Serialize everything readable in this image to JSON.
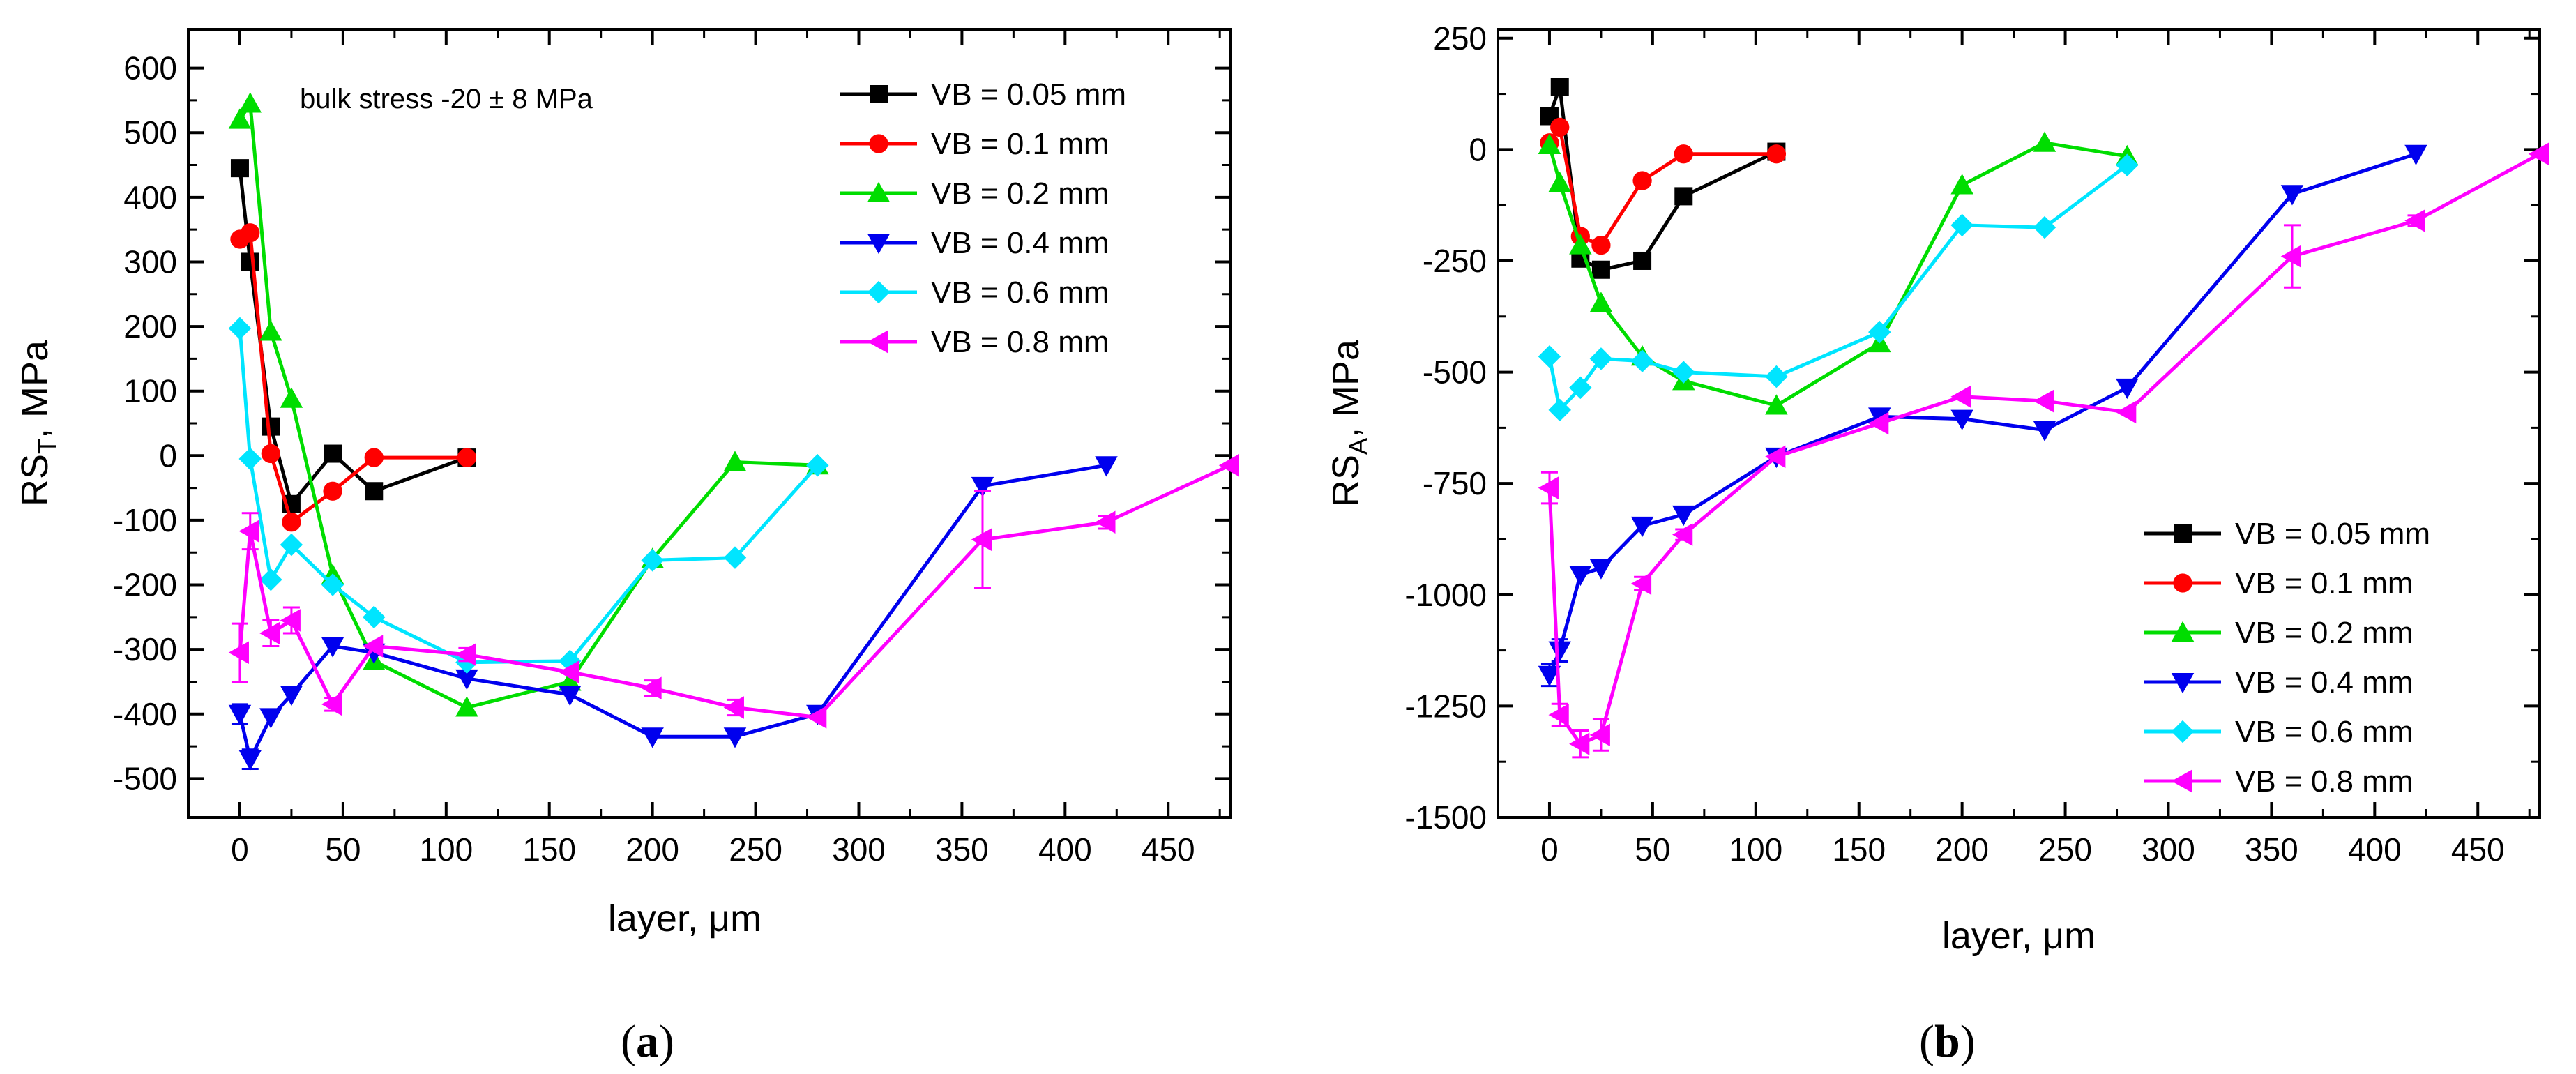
{
  "chart_data": [
    {
      "type": "line",
      "panel_label": "a",
      "xlabel": "layer, μm",
      "ylabel_main": "RS",
      "ylabel_sub": "T",
      "ylabel_tail": ", MPa",
      "annotation": "bulk stress -20 ± 8 MPa",
      "xlim": [
        -25,
        480
      ],
      "ylim": [
        -560,
        660
      ],
      "xticks": [
        0,
        50,
        100,
        150,
        200,
        250,
        300,
        350,
        400,
        450
      ],
      "yticks": [
        -500,
        -400,
        -300,
        -200,
        -100,
        0,
        100,
        200,
        300,
        400,
        500,
        600
      ],
      "legend_position": "top-right",
      "series": [
        {
          "name": "VB = 0.05 mm",
          "color": "#000000",
          "marker": "square",
          "x": [
            0,
            5,
            15,
            25,
            45,
            65,
            110
          ],
          "y": [
            445,
            300,
            45,
            -75,
            3,
            -55,
            -3
          ],
          "err": [
            0,
            0,
            0,
            0,
            0,
            0,
            0
          ]
        },
        {
          "name": "VB = 0.1 mm",
          "color": "#ff0000",
          "marker": "circle",
          "x": [
            0,
            5,
            15,
            25,
            45,
            65,
            110
          ],
          "y": [
            335,
            345,
            3,
            -103,
            -55,
            -3,
            -3
          ],
          "err": [
            0,
            0,
            0,
            0,
            0,
            0,
            0
          ]
        },
        {
          "name": "VB = 0.2 mm",
          "color": "#00dd00",
          "marker": "triangle-up",
          "x": [
            0,
            5,
            15,
            25,
            45,
            65,
            110,
            160,
            200,
            240,
            280
          ],
          "y": [
            520,
            545,
            192,
            88,
            -185,
            -318,
            -390,
            -350,
            -160,
            -10,
            -15
          ],
          "err": [
            0,
            0,
            0,
            0,
            0,
            0,
            0,
            0,
            0,
            0,
            0
          ]
        },
        {
          "name": "VB = 0.4 mm",
          "color": "#0000ee",
          "marker": "triangle-down",
          "x": [
            0,
            5,
            15,
            25,
            45,
            65,
            110,
            160,
            200,
            240,
            280,
            360,
            420
          ],
          "y": [
            -400,
            -470,
            -405,
            -370,
            -295,
            -305,
            -345,
            -370,
            -435,
            -435,
            -400,
            -47,
            -15
          ],
          "err": [
            15,
            15,
            0,
            0,
            0,
            0,
            0,
            0,
            0,
            0,
            0,
            0,
            0
          ]
        },
        {
          "name": "VB = 0.6 mm",
          "color": "#00e5ff",
          "marker": "diamond",
          "x": [
            0,
            5,
            15,
            25,
            45,
            65,
            110,
            160,
            200,
            240,
            280
          ],
          "y": [
            197,
            -5,
            -192,
            -138,
            -200,
            -250,
            -320,
            -318,
            -162,
            -158,
            -15
          ],
          "err": [
            0,
            0,
            0,
            0,
            0,
            0,
            0,
            0,
            0,
            0,
            0
          ]
        },
        {
          "name": "VB = 0.8 mm",
          "color": "#ff00ff",
          "marker": "triangle-left",
          "x": [
            0,
            5,
            15,
            25,
            45,
            65,
            110,
            160,
            200,
            240,
            280,
            360,
            420,
            480
          ],
          "y": [
            -305,
            -117,
            -275,
            -255,
            -385,
            -295,
            -308,
            -335,
            -360,
            -390,
            -405,
            -130,
            -103,
            -15
          ],
          "err": [
            45,
            28,
            20,
            20,
            10,
            0,
            10,
            0,
            12,
            12,
            0,
            75,
            10,
            0
          ]
        }
      ]
    },
    {
      "type": "line",
      "panel_label": "b",
      "xlabel": "layer, μm",
      "ylabel_main": "RS",
      "ylabel_sub": "A",
      "ylabel_tail": ", MPa",
      "xlim": [
        -25,
        480
      ],
      "ylim": [
        -1500,
        270
      ],
      "xticks": [
        0,
        50,
        100,
        150,
        200,
        250,
        300,
        350,
        400,
        450
      ],
      "yticks": [
        -1500,
        -1250,
        -1000,
        -750,
        -500,
        -250,
        0,
        250
      ],
      "legend_position": "bottom-right",
      "series": [
        {
          "name": "VB = 0.05 mm",
          "color": "#000000",
          "marker": "square",
          "x": [
            0,
            5,
            15,
            25,
            45,
            65,
            110
          ],
          "y": [
            75,
            140,
            -245,
            -270,
            -250,
            -105,
            -5
          ],
          "err": [
            0,
            0,
            0,
            0,
            0,
            0,
            0
          ]
        },
        {
          "name": "VB = 0.1 mm",
          "color": "#ff0000",
          "marker": "circle",
          "x": [
            0,
            5,
            15,
            25,
            45,
            65,
            110
          ],
          "y": [
            15,
            50,
            -195,
            -215,
            -70,
            -10,
            -10
          ],
          "err": [
            0,
            0,
            0,
            0,
            0,
            0,
            0
          ]
        },
        {
          "name": "VB = 0.2 mm",
          "color": "#00dd00",
          "marker": "triangle-up",
          "x": [
            0,
            5,
            15,
            25,
            45,
            65,
            110,
            160,
            200,
            240,
            280
          ],
          "y": [
            10,
            -75,
            -215,
            -345,
            -465,
            -520,
            -575,
            -435,
            -80,
            15,
            -15
          ],
          "err": [
            0,
            0,
            0,
            0,
            0,
            0,
            0,
            0,
            0,
            0,
            0
          ]
        },
        {
          "name": "VB = 0.4 mm",
          "color": "#0000ee",
          "marker": "triangle-down",
          "x": [
            0,
            5,
            15,
            25,
            45,
            65,
            110,
            160,
            200,
            240,
            280,
            360,
            420
          ],
          "y": [
            -1180,
            -1125,
            -955,
            -940,
            -845,
            -820,
            -690,
            -600,
            -605,
            -630,
            -535,
            -100,
            -10
          ],
          "err": [
            25,
            25,
            0,
            0,
            0,
            0,
            0,
            0,
            0,
            0,
            0,
            0,
            0
          ]
        },
        {
          "name": "VB = 0.6 mm",
          "color": "#00e5ff",
          "marker": "diamond",
          "x": [
            0,
            5,
            15,
            25,
            45,
            65,
            110,
            160,
            200,
            240,
            280
          ],
          "y": [
            -465,
            -585,
            -535,
            -470,
            -475,
            -500,
            -510,
            -410,
            -170,
            -175,
            -35
          ],
          "err": [
            0,
            0,
            0,
            0,
            0,
            0,
            0,
            0,
            0,
            0,
            0
          ]
        },
        {
          "name": "VB = 0.8 mm",
          "color": "#ff00ff",
          "marker": "triangle-left",
          "x": [
            0,
            5,
            15,
            25,
            45,
            65,
            110,
            160,
            200,
            240,
            280,
            360,
            420,
            480
          ],
          "y": [
            -760,
            -1270,
            -1335,
            -1315,
            -975,
            -865,
            -690,
            -615,
            -555,
            -565,
            -590,
            -240,
            -160,
            -10
          ],
          "err": [
            35,
            25,
            30,
            35,
            15,
            12,
            0,
            0,
            0,
            0,
            0,
            70,
            12,
            0
          ]
        }
      ]
    }
  ]
}
